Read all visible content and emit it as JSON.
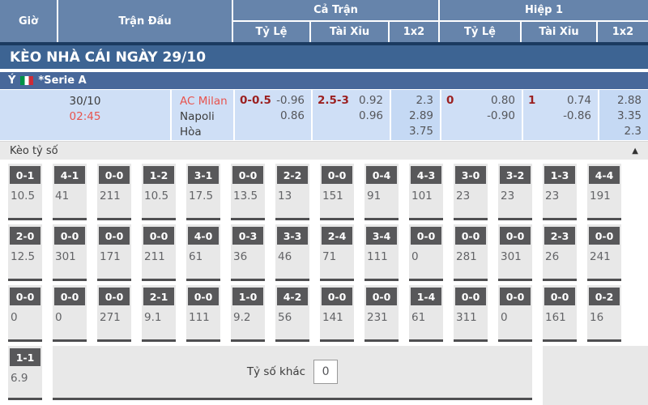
{
  "header": {
    "col_time": "Giờ",
    "col_match": "Trận Đấu",
    "group_full": "Cả Trận",
    "group_half": "Hiệp 1",
    "sub_handicap": "Tỷ Lệ",
    "sub_ou": "Tài Xỉu",
    "sub_1x2": "1x2"
  },
  "banner": {
    "title": "KÈO NHÀ CÁI NGÀY 29/10"
  },
  "league": {
    "country": "Ý",
    "flag": "italy-flag",
    "name": "*Serie A"
  },
  "match": {
    "date": "30/10",
    "time": "02:45",
    "home": "AC Milan",
    "away": "Napoli",
    "draw_label": "Hòa",
    "full": {
      "handicap": {
        "line": "0-0.5",
        "odds": [
          "-0.96",
          "0.86"
        ]
      },
      "ou": {
        "line": "2.5-3",
        "odds": [
          "0.92",
          "0.96"
        ]
      },
      "x12": [
        "2.3",
        "2.89",
        "3.75"
      ]
    },
    "half": {
      "handicap": {
        "line": "0",
        "odds": [
          "0.80",
          "-0.90"
        ]
      },
      "ou": {
        "line": "1",
        "odds": [
          "0.74",
          "-0.86"
        ]
      },
      "x12": [
        "2.88",
        "3.35",
        "2.3"
      ]
    }
  },
  "score_section": {
    "title": "Kèo tỷ số",
    "collapse_icon": "▲",
    "rows": [
      [
        {
          "score": "0-1",
          "odds": "10.5"
        },
        {
          "score": "4-1",
          "odds": "41"
        },
        {
          "score": "0-0",
          "odds": "211"
        },
        {
          "score": "1-2",
          "odds": "10.5"
        },
        {
          "score": "3-1",
          "odds": "17.5"
        },
        {
          "score": "0-0",
          "odds": "13.5"
        },
        {
          "score": "2-2",
          "odds": "13"
        },
        {
          "score": "0-0",
          "odds": "151"
        },
        {
          "score": "0-4",
          "odds": "91"
        },
        {
          "score": "4-3",
          "odds": "101"
        },
        {
          "score": "3-0",
          "odds": "23"
        },
        {
          "score": "3-2",
          "odds": "23"
        },
        {
          "score": "1-3",
          "odds": "23"
        },
        {
          "score": "4-4",
          "odds": "191"
        }
      ],
      [
        {
          "score": "2-0",
          "odds": "12.5"
        },
        {
          "score": "0-0",
          "odds": "301"
        },
        {
          "score": "0-0",
          "odds": "171"
        },
        {
          "score": "0-0",
          "odds": "211"
        },
        {
          "score": "4-0",
          "odds": "61"
        },
        {
          "score": "0-3",
          "odds": "36"
        },
        {
          "score": "3-3",
          "odds": "46"
        },
        {
          "score": "2-4",
          "odds": "71"
        },
        {
          "score": "3-4",
          "odds": "111"
        },
        {
          "score": "0-0",
          "odds": "0"
        },
        {
          "score": "0-0",
          "odds": "281"
        },
        {
          "score": "0-0",
          "odds": "301"
        },
        {
          "score": "2-3",
          "odds": "26"
        },
        {
          "score": "0-0",
          "odds": "241"
        }
      ],
      [
        {
          "score": "0-0",
          "odds": "0"
        },
        {
          "score": "0-0",
          "odds": "0"
        },
        {
          "score": "0-0",
          "odds": "271"
        },
        {
          "score": "2-1",
          "odds": "9.1"
        },
        {
          "score": "0-0",
          "odds": "111"
        },
        {
          "score": "1-0",
          "odds": "9.2"
        },
        {
          "score": "4-2",
          "odds": "56"
        },
        {
          "score": "0-0",
          "odds": "141"
        },
        {
          "score": "0-0",
          "odds": "231"
        },
        {
          "score": "1-4",
          "odds": "61"
        },
        {
          "score": "0-0",
          "odds": "311"
        },
        {
          "score": "0-0",
          "odds": "0"
        },
        {
          "score": "0-0",
          "odds": "161"
        },
        {
          "score": "0-2",
          "odds": "16"
        }
      ]
    ],
    "last_row": [
      {
        "score": "1-1",
        "odds": "6.9"
      }
    ],
    "other_label": "Tỷ số khác",
    "other_value": "0"
  },
  "colors": {
    "header_blue": "#6684ab",
    "banner_blue": "#3d6493",
    "league_blue": "#48689a",
    "navy_strip": "#1b3a60",
    "row_blue": "#cfdff6",
    "row_blue_alt": "#c5d9f4",
    "red_accent": "#e8544e",
    "dark_red_line": "#9b1f1f",
    "score_box_gray": "#58585a",
    "cell_gray": "#e8e8e8"
  }
}
